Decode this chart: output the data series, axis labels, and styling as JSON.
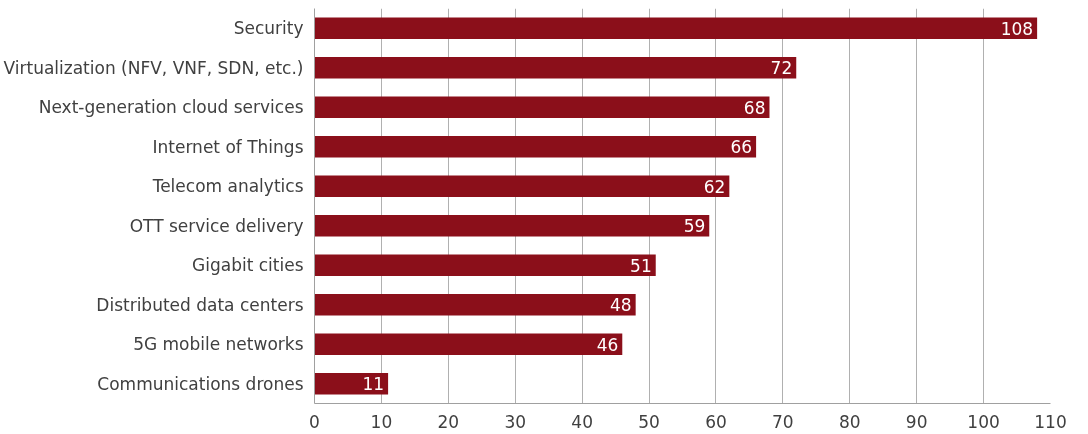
{
  "chart_data": {
    "type": "bar",
    "orientation": "horizontal",
    "categories": [
      "Security",
      "Virtualization (NFV, VNF, SDN, etc.)",
      "Next-generation cloud services",
      "Internet of Things",
      "Telecom analytics",
      "OTT service delivery",
      "Gigabit cities",
      "Distributed data centers",
      "5G mobile networks",
      "Communications drones"
    ],
    "values": [
      108,
      72,
      68,
      66,
      62,
      59,
      51,
      48,
      46,
      11
    ],
    "color": "#8b0f1a",
    "data_labels": true,
    "grid": "x",
    "xlim": [
      0,
      110
    ],
    "xticks": [
      0,
      10,
      20,
      30,
      40,
      50,
      60,
      70,
      80,
      90,
      100,
      110
    ]
  }
}
